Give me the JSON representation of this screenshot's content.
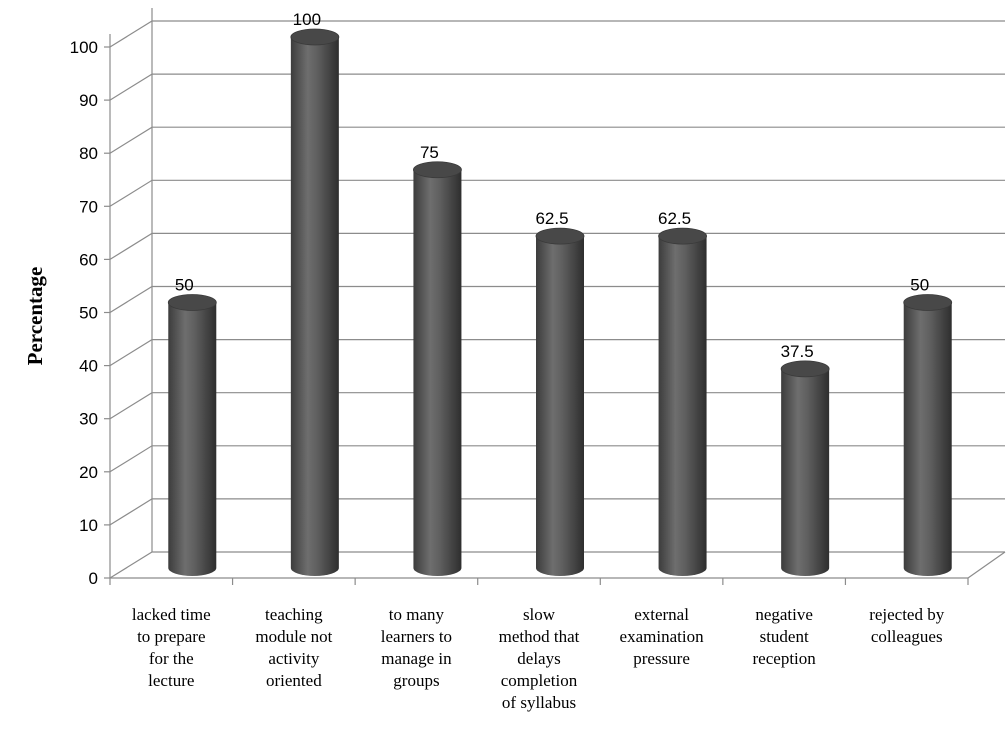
{
  "chart_data": {
    "type": "bar",
    "style": "3d-cylinder",
    "ylabel": "Percentage",
    "xlabel": "",
    "title": "",
    "ylim": [
      0,
      100
    ],
    "yticks": [
      "0",
      "10",
      "20",
      "30",
      "40",
      "50",
      "60",
      "70",
      "80",
      "90",
      "100"
    ],
    "grid": true,
    "legend": "none",
    "bar_color": "#5a5a5a",
    "categories": [
      [
        "lacked time",
        "to prepare",
        "for the",
        "lecture"
      ],
      [
        "teaching",
        "module not",
        "activity",
        "oriented"
      ],
      [
        "to many",
        "learners to",
        "manage in",
        "groups"
      ],
      [
        "slow",
        "method that",
        "delays",
        "completion",
        "of syllabus"
      ],
      [
        "external",
        "examination",
        "pressure"
      ],
      [
        "negative",
        "student",
        "reception"
      ],
      [
        "rejected by",
        "colleagues"
      ]
    ],
    "values": [
      50,
      100,
      75,
      62.5,
      62.5,
      37.5,
      50
    ],
    "data_labels": [
      "50",
      "100",
      "75",
      "62.5",
      "62.5",
      "37.5",
      "50"
    ]
  }
}
